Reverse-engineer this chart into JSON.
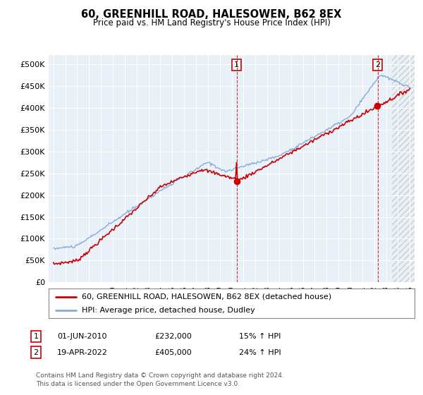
{
  "title": "60, GREENHILL ROAD, HALESOWEN, B62 8EX",
  "subtitle": "Price paid vs. HM Land Registry's House Price Index (HPI)",
  "ylabel_ticks": [
    0,
    50000,
    100000,
    150000,
    200000,
    250000,
    300000,
    350000,
    400000,
    450000,
    500000
  ],
  "ylabel_labels": [
    "£0",
    "£50K",
    "£100K",
    "£150K",
    "£200K",
    "£250K",
    "£300K",
    "£350K",
    "£400K",
    "£450K",
    "£500K"
  ],
  "ylim": [
    0,
    520000
  ],
  "sale1_date": 2010.42,
  "sale1_price": 232000,
  "sale1_label": "01-JUN-2010",
  "sale1_value_label": "£232,000",
  "sale1_pct": "15% ↑ HPI",
  "sale2_date": 2022.29,
  "sale2_price": 405000,
  "sale2_label": "19-APR-2022",
  "sale2_value_label": "£405,000",
  "sale2_pct": "24% ↑ HPI",
  "legend_property": "60, GREENHILL ROAD, HALESOWEN, B62 8EX (detached house)",
  "legend_hpi": "HPI: Average price, detached house, Dudley",
  "footer": "Contains HM Land Registry data © Crown copyright and database right 2024.\nThis data is licensed under the Open Government Licence v3.0.",
  "line_color_red": "#cc0000",
  "line_color_blue": "#88aadd",
  "background_color": "#ffffff",
  "plot_bg_color": "#e8f0f8",
  "grid_color": "#ffffff"
}
